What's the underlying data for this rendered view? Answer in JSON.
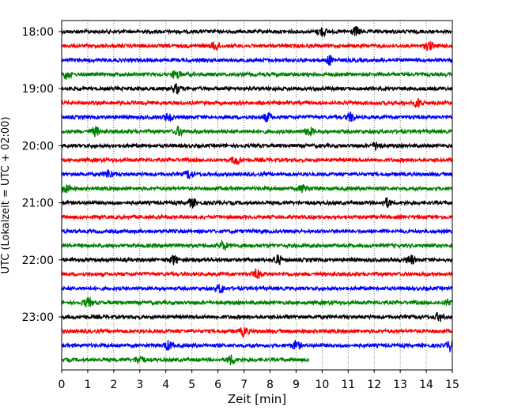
{
  "chart_data": {
    "type": "line",
    "title": "",
    "xlabel": "Zeit  [min]",
    "ylabel": "UTC (Lokalzeit = UTC + 02:00)",
    "xlim": [
      0,
      15
    ],
    "x_ticks": [
      "0",
      "1",
      "2",
      "3",
      "4",
      "5",
      "6",
      "7",
      "8",
      "9",
      "10",
      "11",
      "12",
      "13",
      "14",
      "15"
    ],
    "y_tick_labels": [
      "18:00",
      "19:00",
      "20:00",
      "21:00",
      "22:00",
      "23:00"
    ],
    "grid": "vertical dotted lines at each minute",
    "trace_interval_minutes": 15,
    "colors": [
      "#000000",
      "#ff0000",
      "#0000ff",
      "#008000"
    ],
    "series": [
      {
        "start_utc": "18:00",
        "color": "#000000",
        "end_min": 15,
        "events_min": [
          10.0,
          11.3
        ]
      },
      {
        "start_utc": "18:15",
        "color": "#ff0000",
        "end_min": 15,
        "events_min": [
          5.9,
          14.1
        ]
      },
      {
        "start_utc": "18:30",
        "color": "#0000ff",
        "end_min": 15,
        "events_min": [
          10.3
        ]
      },
      {
        "start_utc": "18:45",
        "color": "#008000",
        "end_min": 15,
        "events_min": [
          0.2,
          4.4
        ]
      },
      {
        "start_utc": "19:00",
        "color": "#000000",
        "end_min": 15,
        "events_min": [
          4.4
        ]
      },
      {
        "start_utc": "19:15",
        "color": "#ff0000",
        "end_min": 15,
        "events_min": [
          13.7
        ]
      },
      {
        "start_utc": "19:30",
        "color": "#0000ff",
        "end_min": 15,
        "events_min": [
          4.1,
          7.9,
          11.1
        ]
      },
      {
        "start_utc": "19:45",
        "color": "#008000",
        "end_min": 15,
        "events_min": [
          1.3,
          4.5,
          9.5
        ]
      },
      {
        "start_utc": "20:00",
        "color": "#000000",
        "end_min": 15,
        "events_min": [
          12.1
        ]
      },
      {
        "start_utc": "20:15",
        "color": "#ff0000",
        "end_min": 15,
        "events_min": [
          6.7
        ]
      },
      {
        "start_utc": "20:30",
        "color": "#0000ff",
        "end_min": 15,
        "events_min": [
          1.8,
          4.9
        ]
      },
      {
        "start_utc": "20:45",
        "color": "#008000",
        "end_min": 15,
        "events_min": [
          0.2,
          9.3
        ]
      },
      {
        "start_utc": "21:00",
        "color": "#000000",
        "end_min": 15,
        "events_min": [
          5.0,
          12.5
        ]
      },
      {
        "start_utc": "21:15",
        "color": "#ff0000",
        "end_min": 15,
        "events_min": []
      },
      {
        "start_utc": "21:30",
        "color": "#0000ff",
        "end_min": 15,
        "events_min": []
      },
      {
        "start_utc": "21:45",
        "color": "#008000",
        "end_min": 15,
        "events_min": [
          6.2
        ]
      },
      {
        "start_utc": "22:00",
        "color": "#000000",
        "end_min": 15,
        "events_min": [
          4.3,
          8.3,
          13.4
        ]
      },
      {
        "start_utc": "22:15",
        "color": "#ff0000",
        "end_min": 15,
        "events_min": [
          7.5
        ]
      },
      {
        "start_utc": "22:30",
        "color": "#0000ff",
        "end_min": 15,
        "events_min": [
          6.1
        ]
      },
      {
        "start_utc": "22:45",
        "color": "#008000",
        "end_min": 15,
        "events_min": [
          1.0,
          14.9
        ]
      },
      {
        "start_utc": "23:00",
        "color": "#000000",
        "end_min": 15,
        "events_min": [
          14.5
        ]
      },
      {
        "start_utc": "23:15",
        "color": "#ff0000",
        "end_min": 15,
        "events_min": [
          7.0
        ]
      },
      {
        "start_utc": "23:30",
        "color": "#0000ff",
        "end_min": 15,
        "events_min": [
          4.1,
          9.0,
          14.9
        ]
      },
      {
        "start_utc": "23:45",
        "color": "#008000",
        "end_min": 9.5,
        "events_min": [
          3.0,
          6.5
        ]
      }
    ]
  }
}
